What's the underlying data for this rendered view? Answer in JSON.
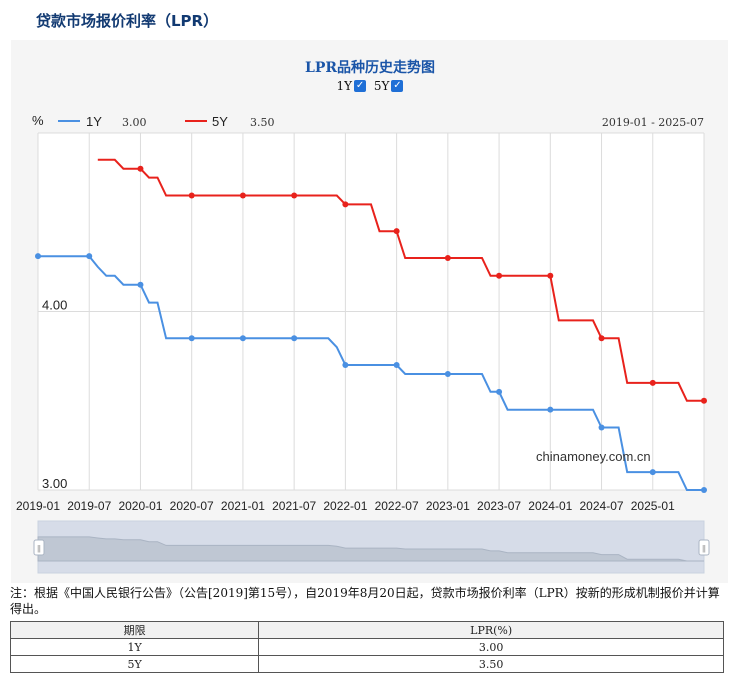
{
  "page": {
    "title": "贷款市场报价利率（LPR）"
  },
  "chart_data": {
    "type": "line",
    "title": "LPR品种历史走势图",
    "toggles": [
      {
        "label": "1Y",
        "checked": true
      },
      {
        "label": "5Y",
        "checked": true
      }
    ],
    "y_unit": "%",
    "date_range": "2019-01 - 2025-07",
    "x_ticks": [
      "2019-01",
      "2019-07",
      "2020-01",
      "2020-07",
      "2021-01",
      "2021-07",
      "2022-01",
      "2022-07",
      "2023-01",
      "2023-07",
      "2024-01",
      "2024-07",
      "2025-01"
    ],
    "y_ticks": [
      {
        "value": 4.0,
        "label": "4.00"
      },
      {
        "value": 3.0,
        "label": "3.00"
      }
    ],
    "ylim": [
      3.0,
      5.0
    ],
    "watermark": "chinamoney.com.cn",
    "series": [
      {
        "name": "1Y",
        "legend_value": "3.00",
        "color": "#4a90e2",
        "points": [
          [
            "2019-01",
            4.31
          ],
          [
            "2019-07",
            4.31
          ],
          [
            "2019-08",
            4.25
          ],
          [
            "2019-09",
            4.2
          ],
          [
            "2019-10",
            4.2
          ],
          [
            "2019-11",
            4.15
          ],
          [
            "2020-01",
            4.15
          ],
          [
            "2020-02",
            4.05
          ],
          [
            "2020-03",
            4.05
          ],
          [
            "2020-04",
            3.85
          ],
          [
            "2020-07",
            3.85
          ],
          [
            "2021-01",
            3.85
          ],
          [
            "2021-07",
            3.85
          ],
          [
            "2021-11",
            3.85
          ],
          [
            "2021-12",
            3.8
          ],
          [
            "2022-01",
            3.7
          ],
          [
            "2022-07",
            3.7
          ],
          [
            "2022-08",
            3.65
          ],
          [
            "2023-01",
            3.65
          ],
          [
            "2023-05",
            3.65
          ],
          [
            "2023-06",
            3.55
          ],
          [
            "2023-07",
            3.55
          ],
          [
            "2023-08",
            3.45
          ],
          [
            "2024-01",
            3.45
          ],
          [
            "2024-05",
            3.45
          ],
          [
            "2024-06",
            3.45
          ],
          [
            "2024-07",
            3.35
          ],
          [
            "2024-09",
            3.35
          ],
          [
            "2024-10",
            3.1
          ],
          [
            "2025-01",
            3.1
          ],
          [
            "2025-04",
            3.1
          ],
          [
            "2025-05",
            3.0
          ],
          [
            "2025-07",
            3.0
          ]
        ]
      },
      {
        "name": "5Y",
        "legend_value": "3.50",
        "color": "#e8221c",
        "points": [
          [
            "2019-08",
            4.85
          ],
          [
            "2019-10",
            4.85
          ],
          [
            "2019-11",
            4.8
          ],
          [
            "2020-01",
            4.8
          ],
          [
            "2020-02",
            4.75
          ],
          [
            "2020-03",
            4.75
          ],
          [
            "2020-04",
            4.65
          ],
          [
            "2020-07",
            4.65
          ],
          [
            "2021-01",
            4.65
          ],
          [
            "2021-07",
            4.65
          ],
          [
            "2021-12",
            4.65
          ],
          [
            "2022-01",
            4.6
          ],
          [
            "2022-04",
            4.6
          ],
          [
            "2022-05",
            4.45
          ],
          [
            "2022-07",
            4.45
          ],
          [
            "2022-08",
            4.3
          ],
          [
            "2023-01",
            4.3
          ],
          [
            "2023-05",
            4.3
          ],
          [
            "2023-06",
            4.2
          ],
          [
            "2023-07",
            4.2
          ],
          [
            "2024-01",
            4.2
          ],
          [
            "2024-02",
            3.95
          ],
          [
            "2024-06",
            3.95
          ],
          [
            "2024-07",
            3.85
          ],
          [
            "2024-09",
            3.85
          ],
          [
            "2024-10",
            3.6
          ],
          [
            "2025-01",
            3.6
          ],
          [
            "2025-04",
            3.6
          ],
          [
            "2025-05",
            3.5
          ],
          [
            "2025-07",
            3.5
          ]
        ]
      }
    ]
  },
  "note": "注：根据《中国人民银行公告》（公告[2019]第15号），自2019年8月20日起，贷款市场报价利率（LPR）按新的形成机制报价并计算得出。",
  "table": {
    "headers": [
      "期限",
      "LPR(%)"
    ],
    "rows": [
      [
        "1Y",
        "3.00"
      ],
      [
        "5Y",
        "3.50"
      ]
    ]
  }
}
